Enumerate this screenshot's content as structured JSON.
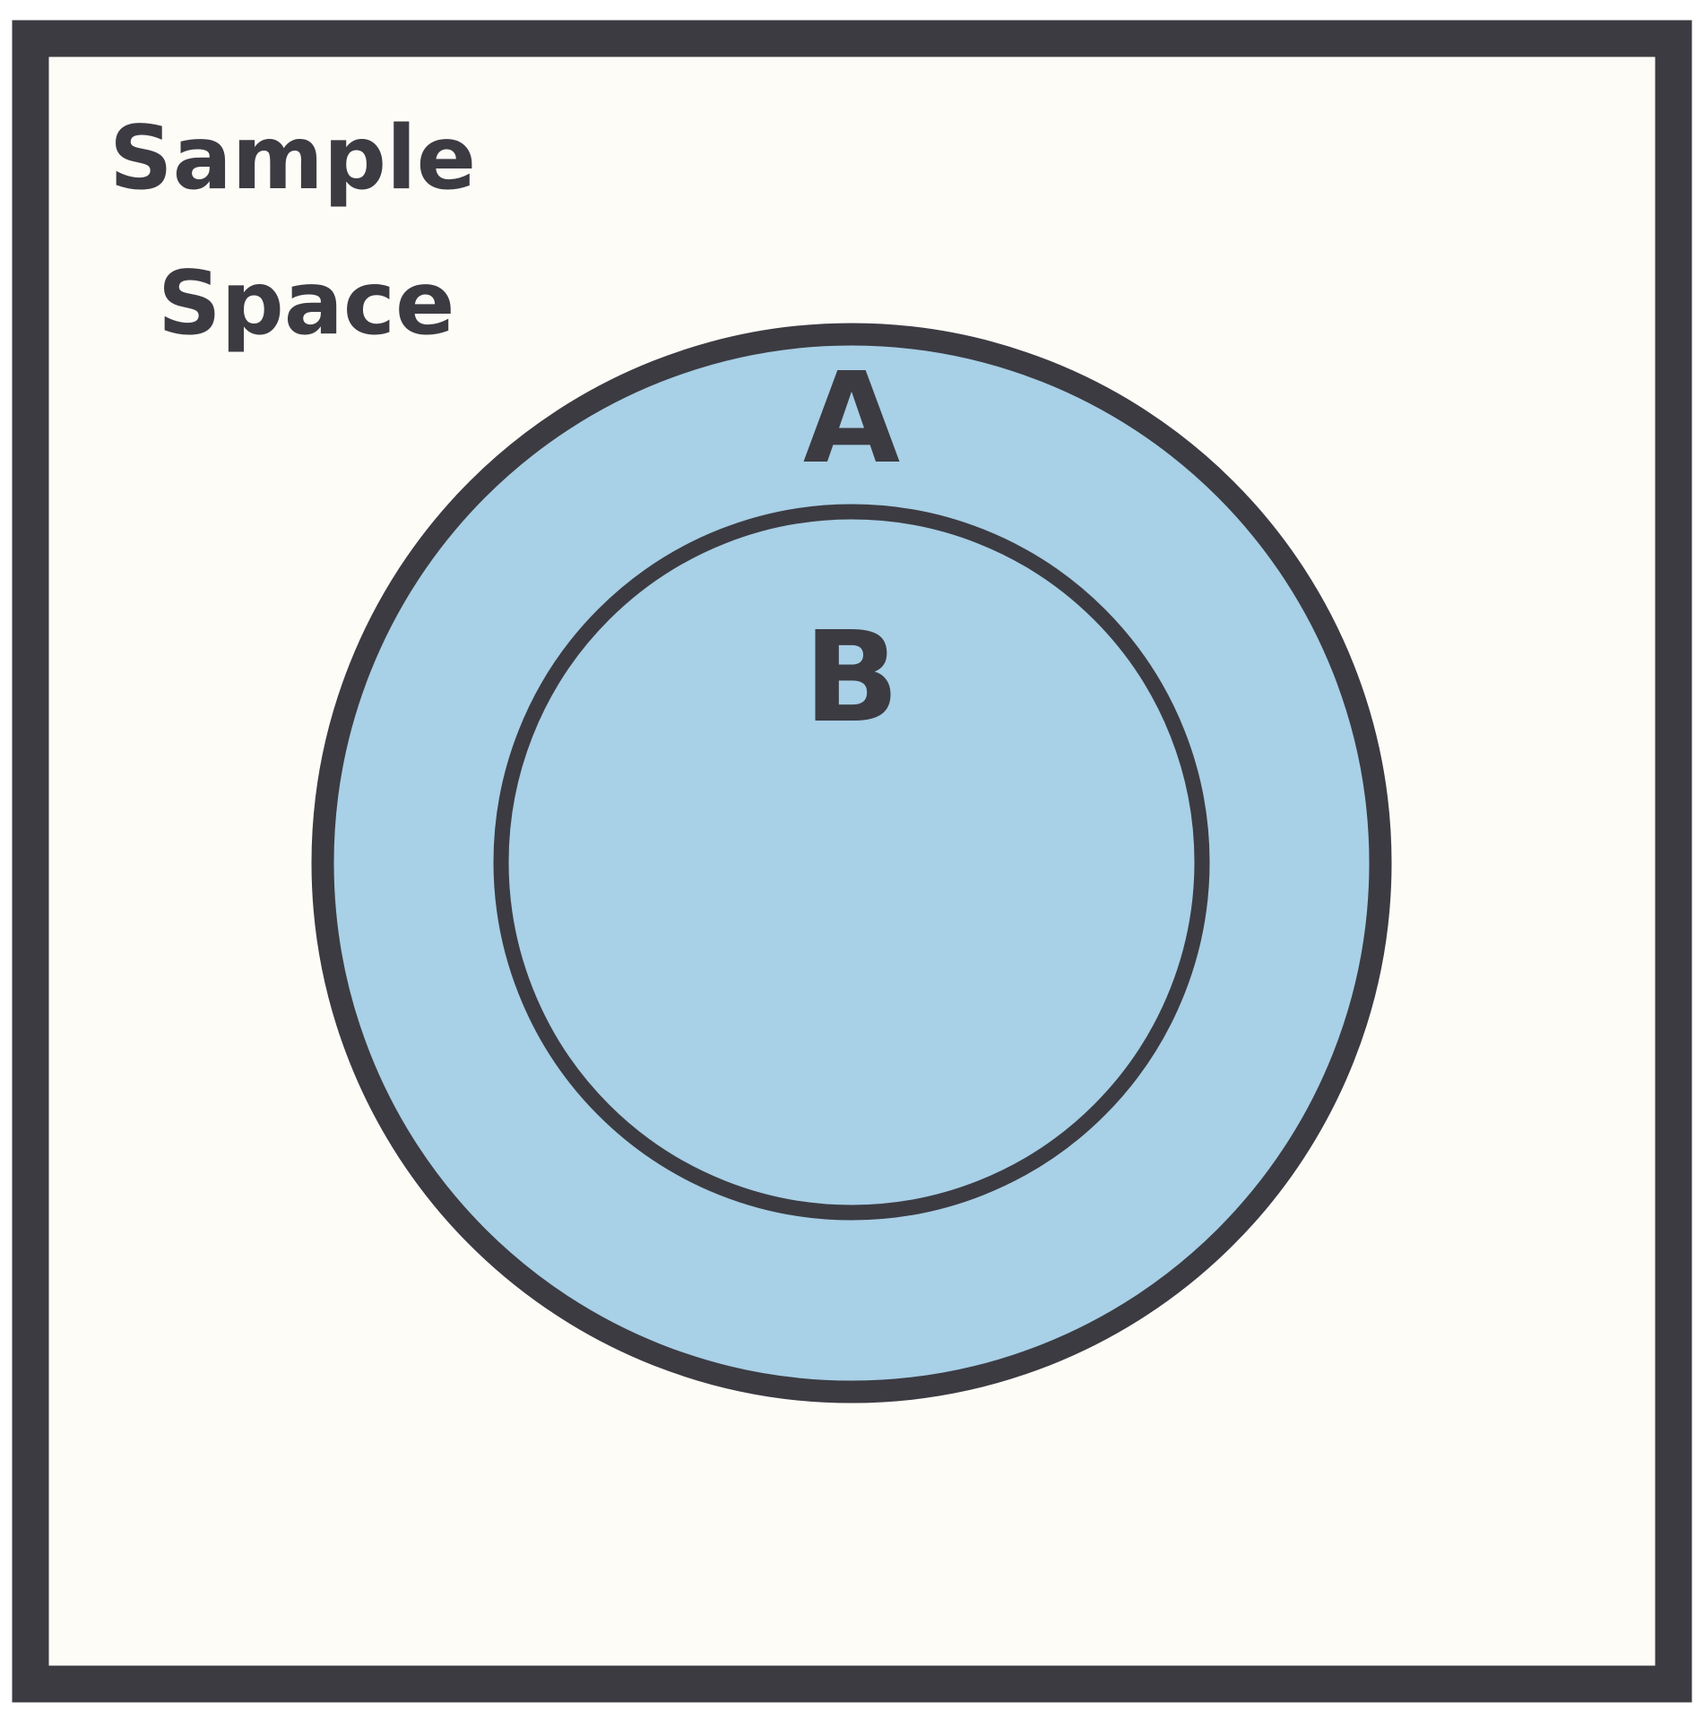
{
  "diagram": {
    "type": "venn-subset",
    "title_lines": [
      "Sample",
      "Space"
    ],
    "outer_set": {
      "label": "A",
      "fill": "#a8d0e6"
    },
    "inner_set": {
      "label": "B",
      "fill": "#a8d0e6"
    },
    "colors": {
      "background": "#fefcf7",
      "stroke": "#3c3b42",
      "text": "#3c3b42"
    }
  }
}
